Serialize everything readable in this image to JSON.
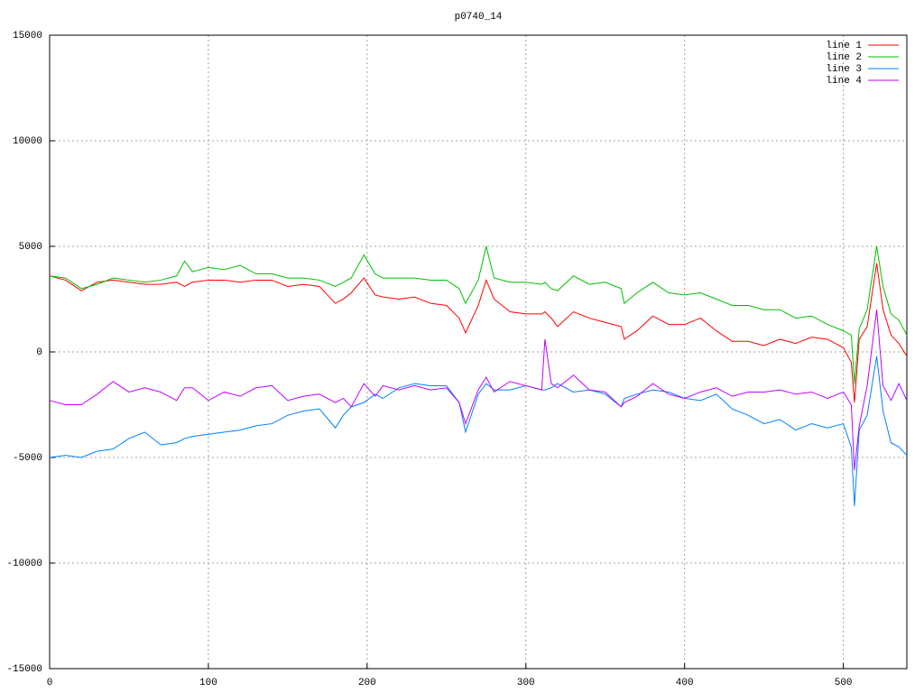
{
  "chart_data": {
    "type": "line",
    "title": "p0740_14",
    "x": [
      0,
      10,
      20,
      30,
      40,
      50,
      60,
      70,
      80,
      85,
      90,
      100,
      110,
      120,
      130,
      140,
      150,
      160,
      170,
      180,
      185,
      190,
      198,
      205,
      210,
      220,
      230,
      240,
      250,
      258,
      262,
      270,
      275,
      280,
      290,
      300,
      310,
      312,
      316,
      320,
      330,
      340,
      350,
      360,
      362,
      370,
      380,
      390,
      400,
      410,
      420,
      430,
      440,
      450,
      460,
      470,
      480,
      490,
      500,
      505,
      507,
      510,
      515,
      521,
      525,
      530,
      535,
      540
    ],
    "xlim": [
      0,
      540
    ],
    "xticks": [
      0,
      100,
      200,
      300,
      400,
      500
    ],
    "ylim": [
      -15000,
      15000
    ],
    "yticks": [
      -15000,
      -10000,
      -5000,
      0,
      5000,
      10000,
      15000
    ],
    "grid": true,
    "legend": "top-right",
    "series": [
      {
        "name": "line 1",
        "color": "#ff0000",
        "values": [
          3600,
          3400,
          2900,
          3300,
          3400,
          3300,
          3200,
          3200,
          3300,
          3100,
          3300,
          3400,
          3400,
          3300,
          3400,
          3400,
          3100,
          3200,
          3100,
          2300,
          2500,
          2800,
          3500,
          2700,
          2600,
          2500,
          2600,
          2300,
          2200,
          1600,
          900,
          2200,
          3400,
          2500,
          1900,
          1800,
          1800,
          1900,
          1600,
          1200,
          1900,
          1600,
          1400,
          1200,
          600,
          1000,
          1700,
          1300,
          1300,
          1600,
          1000,
          500,
          500,
          300,
          600,
          400,
          700,
          600,
          200,
          -500,
          -2400,
          600,
          1200,
          4200,
          2000,
          800,
          400,
          -200
        ]
      },
      {
        "name": "line 2",
        "color": "#00c000",
        "values": [
          3600,
          3500,
          3000,
          3200,
          3500,
          3400,
          3300,
          3400,
          3600,
          4300,
          3800,
          4000,
          3900,
          4100,
          3700,
          3700,
          3500,
          3500,
          3400,
          3100,
          3300,
          3500,
          4600,
          3700,
          3500,
          3500,
          3500,
          3400,
          3400,
          3000,
          2300,
          3400,
          5000,
          3500,
          3300,
          3300,
          3200,
          3300,
          3000,
          2900,
          3600,
          3200,
          3300,
          3000,
          2300,
          2800,
          3300,
          2800,
          2700,
          2800,
          2500,
          2200,
          2200,
          2000,
          2000,
          1600,
          1700,
          1300,
          1000,
          800,
          -1500,
          1100,
          2000,
          5000,
          3100,
          1800,
          1500,
          800
        ]
      },
      {
        "name": "line 3",
        "color": "#0080ff",
        "values": [
          -5000,
          -4900,
          -5000,
          -4700,
          -4600,
          -4100,
          -3800,
          -4400,
          -4300,
          -4100,
          -4000,
          -3900,
          -3800,
          -3700,
          -3500,
          -3400,
          -3000,
          -2800,
          -2700,
          -3600,
          -3000,
          -2600,
          -2400,
          -2000,
          -2200,
          -1700,
          -1500,
          -1600,
          -1600,
          -2400,
          -3800,
          -2000,
          -1500,
          -1800,
          -1800,
          -1600,
          -1800,
          -1800,
          -1700,
          -1500,
          -1900,
          -1800,
          -2000,
          -2600,
          -2200,
          -2000,
          -1800,
          -1900,
          -2200,
          -2300,
          -2000,
          -2700,
          -3000,
          -3400,
          -3200,
          -3700,
          -3400,
          -3600,
          -3400,
          -4500,
          -7300,
          -3700,
          -3000,
          -200,
          -2800,
          -4300,
          -4500,
          -4900
        ]
      },
      {
        "name": "line 4",
        "color": "#c000ff",
        "values": [
          -2300,
          -2500,
          -2500,
          -2000,
          -1400,
          -1900,
          -1700,
          -1900,
          -2300,
          -1700,
          -1700,
          -2300,
          -1900,
          -2100,
          -1700,
          -1600,
          -2300,
          -2100,
          -2000,
          -2400,
          -2200,
          -2600,
          -1500,
          -2100,
          -1600,
          -1800,
          -1600,
          -1800,
          -1700,
          -2400,
          -3400,
          -1800,
          -1200,
          -1900,
          -1400,
          -1600,
          -1800,
          600,
          -1500,
          -1700,
          -1100,
          -1800,
          -1900,
          -2600,
          -2400,
          -2100,
          -1500,
          -2000,
          -2200,
          -1900,
          -1700,
          -2100,
          -1900,
          -1900,
          -1800,
          -2000,
          -1900,
          -2200,
          -1900,
          -2500,
          -5600,
          -3500,
          -1600,
          2000,
          -1600,
          -2300,
          -1500,
          -2300
        ]
      }
    ]
  }
}
